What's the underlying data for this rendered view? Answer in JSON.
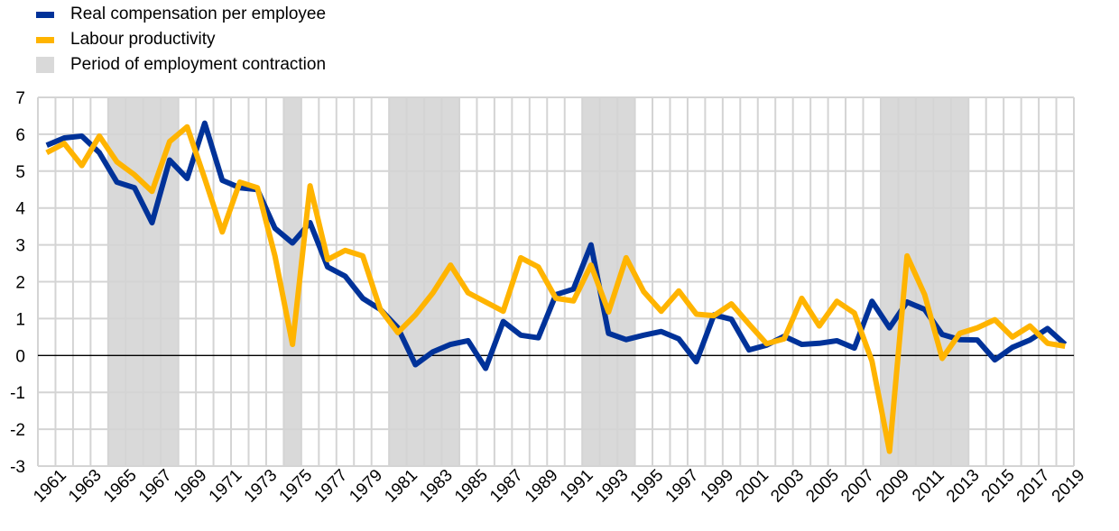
{
  "chart_data": {
    "type": "line",
    "title": "",
    "xlabel": "",
    "ylabel": "",
    "ylim": [
      -3,
      7
    ],
    "yticks": [
      -3,
      -2,
      -1,
      0,
      1,
      2,
      3,
      4,
      5,
      6,
      7
    ],
    "x": [
      1961,
      1962,
      1963,
      1964,
      1965,
      1966,
      1967,
      1968,
      1969,
      1970,
      1971,
      1972,
      1973,
      1974,
      1975,
      1976,
      1977,
      1978,
      1979,
      1980,
      1981,
      1982,
      1983,
      1984,
      1985,
      1986,
      1987,
      1988,
      1989,
      1990,
      1991,
      1992,
      1993,
      1994,
      1995,
      1996,
      1997,
      1998,
      1999,
      2000,
      2001,
      2002,
      2003,
      2004,
      2005,
      2006,
      2007,
      2008,
      2009,
      2010,
      2011,
      2012,
      2013,
      2014,
      2015,
      2016,
      2017,
      2018,
      2019
    ],
    "xtick_labels": [
      "1961",
      "1963",
      "1965",
      "1967",
      "1969",
      "1971",
      "1973",
      "1975",
      "1977",
      "1979",
      "1981",
      "1983",
      "1985",
      "1987",
      "1989",
      "1991",
      "1993",
      "1995",
      "1997",
      "1999",
      "2001",
      "2003",
      "2005",
      "2007",
      "2009",
      "2011",
      "2013",
      "2015",
      "2017",
      "2019"
    ],
    "grid": true,
    "legend_position": "top-left",
    "series": [
      {
        "name": "Real compensation per employee",
        "color": "#003299",
        "values": [
          5.7,
          5.9,
          5.95,
          5.5,
          4.7,
          4.55,
          3.6,
          5.3,
          4.8,
          6.3,
          4.75,
          4.55,
          4.5,
          3.45,
          3.05,
          3.6,
          2.4,
          2.15,
          1.55,
          1.25,
          0.75,
          -0.25,
          0.1,
          0.3,
          0.4,
          -0.35,
          0.92,
          0.55,
          0.48,
          1.65,
          1.8,
          3.0,
          0.6,
          0.43,
          0.55,
          0.65,
          0.45,
          -0.17,
          1.1,
          0.98,
          0.15,
          0.28,
          0.52,
          0.3,
          0.33,
          0.4,
          0.2,
          1.47,
          0.75,
          1.45,
          1.25,
          0.57,
          0.43,
          0.42,
          -0.12,
          0.22,
          0.42,
          0.73,
          0.3
        ]
      },
      {
        "name": "Labour productivity",
        "color": "#FFB400",
        "values": [
          5.5,
          5.75,
          5.15,
          5.95,
          5.25,
          4.9,
          4.45,
          5.8,
          6.2,
          4.8,
          3.35,
          4.7,
          4.55,
          2.7,
          0.3,
          4.6,
          2.6,
          2.85,
          2.7,
          1.25,
          0.62,
          1.1,
          1.7,
          2.45,
          1.7,
          1.45,
          1.2,
          2.65,
          2.4,
          1.55,
          1.48,
          2.45,
          1.18,
          2.65,
          1.73,
          1.2,
          1.75,
          1.12,
          1.08,
          1.4,
          0.85,
          0.32,
          0.45,
          1.55,
          0.8,
          1.47,
          1.15,
          -0.15,
          -2.6,
          2.7,
          1.65,
          -0.08,
          0.6,
          0.75,
          0.97,
          0.5,
          0.8,
          0.33,
          0.25
        ]
      }
    ],
    "shaded_periods": {
      "name": "Period of employment contraction",
      "color": "#D9D9D9",
      "ranges": [
        [
          1965,
          1968
        ],
        [
          1975,
          1975
        ],
        [
          1981,
          1984
        ],
        [
          1992,
          1994
        ],
        [
          2009,
          2013
        ]
      ]
    }
  }
}
